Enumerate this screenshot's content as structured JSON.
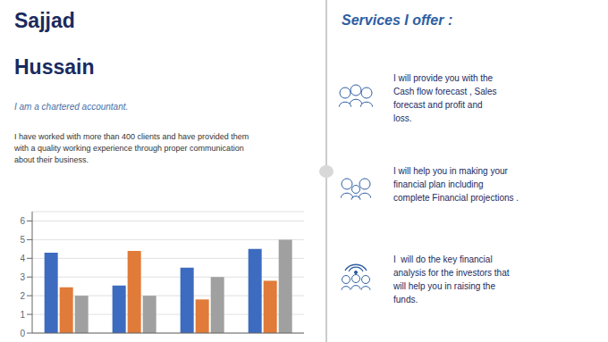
{
  "chart_data": {
    "type": "bar",
    "title": "Sajjad\nHussain",
    "subtitle": "I am a chartered accountant.",
    "annotations": [
      "I have worked with more than 400 clients and have provided them\nwith a quality working experience through proper communication\nabout their business.",
      "Services I offer :",
      "I will provide you with the\nCash flow forecast , Sales\nforecast and profit and\nloss.",
      "I will help you in making your\nfinancial plan including\ncomplete Financial projections .",
      "I  will do the key financial\nanalysis for the investors that\nwill help you in raising the\nfunds."
    ],
    "categories": [
      null,
      null,
      null,
      null
    ],
    "series": [
      {
        "color": "#3d6bbf",
        "values": [
          4.3,
          2.55,
          3.5,
          4.5
        ]
      },
      {
        "color": "#e07b39",
        "values": [
          2.45,
          4.4,
          1.8,
          2.8
        ]
      },
      {
        "color": "#a0a0a0",
        "values": [
          2.0,
          2.0,
          3.0,
          5.0
        ]
      }
    ],
    "ylim": [
      0,
      6.5
    ],
    "yticks": [
      0,
      1,
      2,
      3,
      4,
      5,
      6
    ],
    "grid": true,
    "tick_labels": "y"
  }
}
